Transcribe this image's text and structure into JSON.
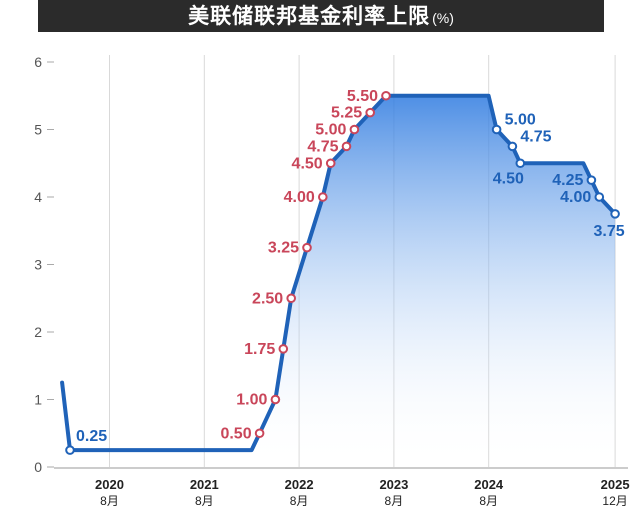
{
  "header": {
    "title": "美联储联邦基金利率上限",
    "unit": "(%)"
  },
  "chart_data": {
    "type": "line",
    "title": "美联储联邦基金利率上限",
    "ylabel": "%",
    "xlabel": "",
    "ylim": [
      0,
      6
    ],
    "yticks": [
      "0",
      "1",
      "2",
      "3",
      "4",
      "5",
      "6"
    ],
    "grid": "vertical",
    "x_ticks": [
      {
        "x": "2020-08",
        "year": "2020",
        "month": "8月"
      },
      {
        "x": "2021-08",
        "year": "2021",
        "month": "8月"
      },
      {
        "x": "2022-08",
        "year": "2022",
        "month": "8月"
      },
      {
        "x": "2023-08",
        "year": "2023",
        "month": "8月"
      },
      {
        "x": "2024-08",
        "year": "2024",
        "month": "8月"
      },
      {
        "x": "2025-12",
        "year": "2025",
        "month": "12月"
      }
    ],
    "series": [
      {
        "values": [
          {
            "x": "2020-02",
            "y": 1.25
          },
          {
            "x": "2020-03",
            "y": 0.25
          },
          {
            "x": "2022-03",
            "y": 0.5
          },
          {
            "x": "2022-05",
            "y": 1.0
          },
          {
            "x": "2022-06",
            "y": 1.75
          },
          {
            "x": "2022-07",
            "y": 2.5
          },
          {
            "x": "2022-09",
            "y": 3.25
          },
          {
            "x": "2022-11",
            "y": 4.0
          },
          {
            "x": "2022-12",
            "y": 4.5
          },
          {
            "x": "2023-02",
            "y": 4.75
          },
          {
            "x": "2023-03",
            "y": 5.0
          },
          {
            "x": "2023-05",
            "y": 5.25
          },
          {
            "x": "2023-07",
            "y": 5.5
          },
          {
            "x": "2024-09",
            "y": 5.0
          },
          {
            "x": "2024-11",
            "y": 4.75
          },
          {
            "x": "2024-12",
            "y": 4.5
          },
          {
            "x": "2025-09",
            "y": 4.25
          },
          {
            "x": "2025-10",
            "y": 4.0
          },
          {
            "x": "2025-12",
            "y": 3.75
          }
        ]
      }
    ],
    "point_labels": [
      {
        "x": "2020-03",
        "text": "0.25",
        "color": "#1f62b8"
      },
      {
        "x": "2022-03",
        "text": "0.50",
        "color": "#c9465a"
      },
      {
        "x": "2022-05",
        "text": "1.00",
        "color": "#c9465a"
      },
      {
        "x": "2022-06",
        "text": "1.75",
        "color": "#c9465a"
      },
      {
        "x": "2022-07",
        "text": "2.50",
        "color": "#c9465a"
      },
      {
        "x": "2022-09",
        "text": "3.25",
        "color": "#c9465a"
      },
      {
        "x": "2022-11",
        "text": "4.00",
        "color": "#c9465a"
      },
      {
        "x": "2022-12",
        "text": "4.50",
        "color": "#c9465a"
      },
      {
        "x": "2023-02",
        "text": "4.75",
        "color": "#c9465a"
      },
      {
        "x": "2023-03",
        "text": "5.00",
        "color": "#c9465a"
      },
      {
        "x": "2023-05",
        "text": "5.25",
        "color": "#c9465a"
      },
      {
        "x": "2023-07",
        "text": "5.50",
        "color": "#c9465a"
      },
      {
        "x": "2024-09",
        "text": "5.00",
        "color": "#1f62b8"
      },
      {
        "x": "2024-11",
        "text": "4.75",
        "color": "#1f62b8"
      },
      {
        "x": "2024-12",
        "text": "4.50",
        "color": "#1f62b8"
      },
      {
        "x": "2025-09",
        "text": "4.25",
        "color": "#1f62b8"
      },
      {
        "x": "2025-10",
        "text": "4.00",
        "color": "#1f62b8"
      },
      {
        "x": "2025-12",
        "text": "3.75",
        "color": "#1f62b8"
      }
    ],
    "colors": {
      "line": "#1f62b8",
      "hike": "#c9465a",
      "cut": "#1f62b8",
      "title_bg": "#2b2b2b"
    }
  }
}
